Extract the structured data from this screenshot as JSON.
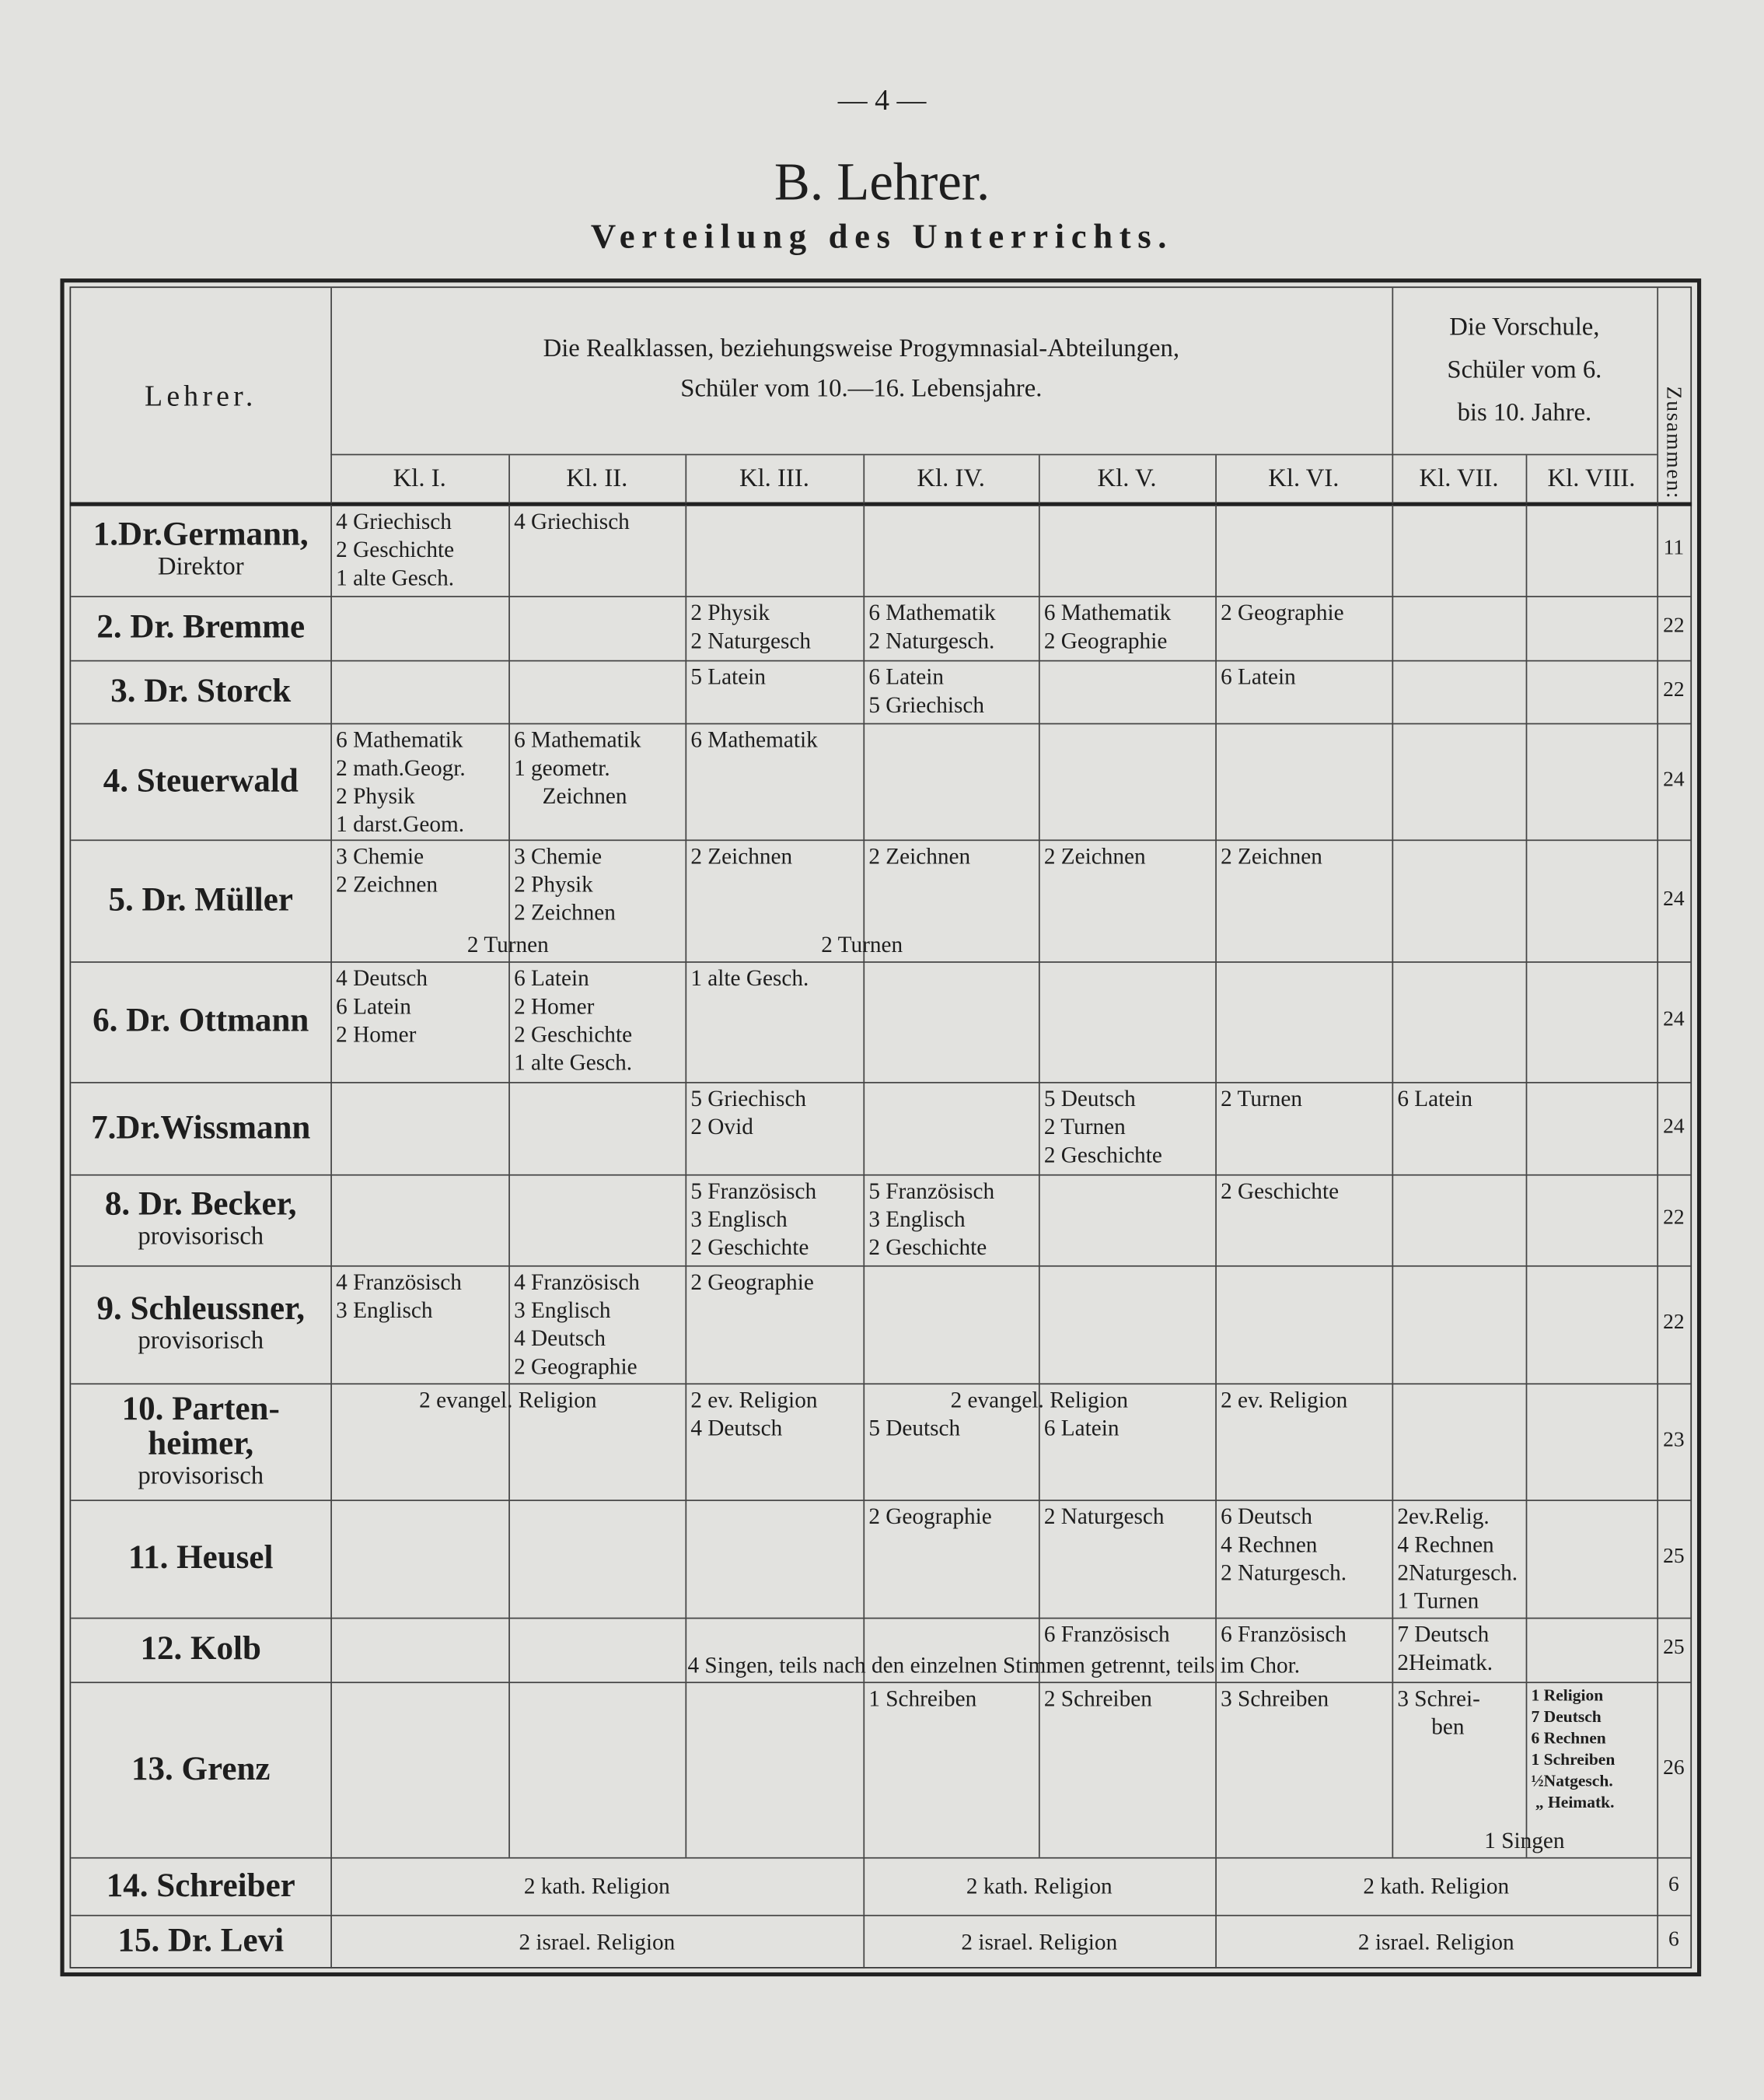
{
  "page_number": "— 4 —",
  "title": "B. Lehrer.",
  "subtitle": "Verteilung des Unterrichts.",
  "header": {
    "teacher_col": "Lehrer.",
    "realklassen": [
      "Die Realklassen, beziehungsweise Progymnasial-Abteilungen,",
      "Schüler vom 10.—16. Lebensjahre."
    ],
    "vorschule": [
      "Die Vorschule,",
      "Schüler vom 6.",
      "bis 10. Jahre."
    ],
    "total_col": "Zusammen:",
    "classes": [
      "Kl. I.",
      "Kl. II.",
      "Kl. III.",
      "Kl. IV.",
      "Kl. V.",
      "Kl. VI.",
      "Kl. VII.",
      "Kl. VIII."
    ]
  },
  "rows": [
    {
      "name": [
        "1.Dr.Germann,"
      ],
      "sub": [
        "Direktor"
      ],
      "total": "11",
      "cells": [
        {
          "col": 0,
          "lines": [
            "4 Griechisch",
            "2 Geschichte",
            "1 alte Gesch."
          ]
        },
        {
          "col": 1,
          "lines": [
            "4 Griechisch"
          ]
        }
      ],
      "spans": []
    },
    {
      "name": [
        "2. Dr. Bremme"
      ],
      "sub": [],
      "total": "22",
      "cells": [
        {
          "col": 2,
          "lines": [
            "2 Physik",
            "2 Naturgesch"
          ]
        },
        {
          "col": 3,
          "lines": [
            "6 Mathematik",
            "2 Naturgesch."
          ]
        },
        {
          "col": 4,
          "lines": [
            "6 Mathematik",
            "2 Geographie"
          ]
        },
        {
          "col": 5,
          "lines": [
            "2 Geographie"
          ]
        }
      ],
      "spans": []
    },
    {
      "name": [
        "3. Dr. Storck"
      ],
      "sub": [],
      "total": "22",
      "cells": [
        {
          "col": 2,
          "lines": [
            "5 Latein"
          ]
        },
        {
          "col": 3,
          "lines": [
            "6 Latein",
            "5 Griechisch"
          ]
        },
        {
          "col": 5,
          "lines": [
            "6 Latein"
          ]
        }
      ],
      "spans": []
    },
    {
      "name": [
        "4. Steuerwald"
      ],
      "sub": [],
      "total": "24",
      "cells": [
        {
          "col": 0,
          "lines": [
            "6 Mathematik",
            "2 math.Geogr.",
            "2 Physik",
            "1 darst.Geom."
          ]
        },
        {
          "col": 1,
          "lines": [
            "6 Mathematik",
            "1 geometr.",
            "     Zeichnen"
          ]
        },
        {
          "col": 2,
          "lines": [
            "6 Mathematik"
          ]
        }
      ],
      "spans": []
    },
    {
      "name": [
        "5. Dr. Müller"
      ],
      "sub": [],
      "total": "24",
      "cells": [
        {
          "col": 0,
          "lines": [
            "3 Chemie",
            "2 Zeichnen"
          ]
        },
        {
          "col": 1,
          "lines": [
            "3 Chemie",
            "2 Physik",
            "2 Zeichnen"
          ]
        },
        {
          "col": 2,
          "lines": [
            "2 Zeichnen"
          ]
        },
        {
          "col": 3,
          "lines": [
            "2 Zeichnen"
          ]
        },
        {
          "col": 4,
          "lines": [
            "2 Zeichnen"
          ]
        },
        {
          "col": 5,
          "lines": [
            "2 Zeichnen"
          ]
        }
      ],
      "spans": [
        {
          "cols": [
            0,
            1
          ],
          "text": "2 Turnen",
          "valign": "bottom"
        },
        {
          "cols": [
            2,
            3
          ],
          "text": "2 Turnen",
          "valign": "bottom"
        }
      ]
    },
    {
      "name": [
        "6. Dr. Ottmann"
      ],
      "sub": [],
      "total": "24",
      "cells": [
        {
          "col": 0,
          "lines": [
            "4 Deutsch",
            "6 Latein",
            "2 Homer"
          ]
        },
        {
          "col": 1,
          "lines": [
            "6 Latein",
            "2 Homer",
            "2 Geschichte",
            "1 alte Gesch."
          ]
        },
        {
          "col": 2,
          "lines": [
            "1 alte Gesch."
          ]
        }
      ],
      "spans": []
    },
    {
      "name": [
        "7.Dr.Wissmann"
      ],
      "sub": [],
      "total": "24",
      "cells": [
        {
          "col": 2,
          "lines": [
            "5 Griechisch",
            "2 Ovid"
          ]
        },
        {
          "col": 4,
          "lines": [
            "5 Deutsch",
            "2 Turnen",
            "2 Geschichte"
          ]
        },
        {
          "col": 5,
          "lines": [
            "2 Turnen"
          ]
        },
        {
          "col": 6,
          "lines": [
            "6 Latein"
          ]
        }
      ],
      "spans": []
    },
    {
      "name": [
        "8. Dr. Becker,"
      ],
      "sub": [
        "provisorisch"
      ],
      "total": "22",
      "cells": [
        {
          "col": 2,
          "lines": [
            "5 Französisch",
            "3 Englisch",
            "2 Geschichte"
          ]
        },
        {
          "col": 3,
          "lines": [
            "5 Französisch",
            "3 Englisch",
            "2 Geschichte"
          ]
        },
        {
          "col": 5,
          "lines": [
            "2 Geschichte"
          ]
        }
      ],
      "spans": []
    },
    {
      "name": [
        "9. Schleussner,"
      ],
      "sub": [
        "provisorisch"
      ],
      "total": "22",
      "cells": [
        {
          "col": 0,
          "lines": [
            "4 Französisch",
            "3 Englisch"
          ]
        },
        {
          "col": 1,
          "lines": [
            "4 Französisch",
            "3 Englisch",
            "4 Deutsch",
            "2 Geographie"
          ]
        },
        {
          "col": 2,
          "lines": [
            "2 Geographie"
          ]
        }
      ],
      "spans": []
    },
    {
      "name": [
        "10. Parten-",
        "heimer,"
      ],
      "sub": [
        "provisorisch"
      ],
      "total": "23",
      "cells": [
        {
          "col": 2,
          "lines": [
            "2 ev. Religion",
            "4 Deutsch"
          ]
        },
        {
          "col": 3,
          "lines": [
            "",
            "5 Deutsch"
          ]
        },
        {
          "col": 4,
          "lines": [
            "",
            "6 Latein"
          ]
        },
        {
          "col": 5,
          "lines": [
            "2 ev. Religion"
          ]
        }
      ],
      "spans": [
        {
          "cols": [
            0,
            1
          ],
          "text": "2 evangel. Religion",
          "valign": "top"
        },
        {
          "cols": [
            3,
            4
          ],
          "text": "2 evangel. Religion",
          "valign": "top"
        }
      ]
    },
    {
      "name": [
        "11. Heusel"
      ],
      "sub": [],
      "total": "25",
      "cells": [
        {
          "col": 3,
          "lines": [
            "2 Geographie"
          ]
        },
        {
          "col": 4,
          "lines": [
            "2 Naturgesch"
          ]
        },
        {
          "col": 5,
          "lines": [
            "6 Deutsch",
            "4 Rechnen",
            "2 Naturgesch."
          ]
        },
        {
          "col": 6,
          "lines": [
            "2ev.Relig.",
            "4 Rechnen",
            "2Naturgesch.",
            "1 Turnen"
          ]
        }
      ],
      "spans": []
    },
    {
      "name": [
        "12. Kolb"
      ],
      "sub": [],
      "total": "25",
      "cells": [
        {
          "col": 4,
          "lines": [
            "6 Französisch"
          ]
        },
        {
          "col": 5,
          "lines": [
            "6 Französisch"
          ]
        },
        {
          "col": 6,
          "lines": [
            "7 Deutsch",
            "2Heimatk."
          ]
        }
      ],
      "spans": [
        {
          "cols": [
            0,
            7
          ],
          "text": "4 Singen, teils nach den einzelnen Stimmen getrennt, teils im Chor.",
          "valign": "bottom"
        }
      ]
    },
    {
      "name": [
        "13. Grenz"
      ],
      "sub": [],
      "total": "26",
      "cells": [
        {
          "col": 3,
          "lines": [
            "1 Schreiben"
          ]
        },
        {
          "col": 4,
          "lines": [
            "2 Schreiben"
          ]
        },
        {
          "col": 5,
          "lines": [
            "3 Schreiben"
          ]
        },
        {
          "col": 6,
          "lines": [
            "3 Schrei-",
            "      ben"
          ]
        },
        {
          "col": 7,
          "lines": [
            "1 Religion",
            "7 Deutsch",
            "6 Rechnen",
            "1 Schreiben",
            "½Natgesch.",
            " „ Heimatk."
          ],
          "small": true
        }
      ],
      "spans": [
        {
          "cols": [
            6,
            7
          ],
          "text": "1 Singen",
          "valign": "bottom"
        }
      ]
    },
    {
      "name": [
        "14. Schreiber"
      ],
      "sub": [],
      "total": "6",
      "cells": [],
      "spans": [
        {
          "cols": [
            0,
            2
          ],
          "text": "2 kath. Religion",
          "valign": "middle"
        },
        {
          "cols": [
            3,
            4
          ],
          "text": "2 kath. Religion",
          "valign": "middle"
        },
        {
          "cols": [
            5,
            7
          ],
          "text": "2 kath. Religion",
          "valign": "middle"
        }
      ]
    },
    {
      "name": [
        "15. Dr. Levi"
      ],
      "sub": [],
      "total": "6",
      "cells": [],
      "spans": [
        {
          "cols": [
            0,
            2
          ],
          "text": "2 israel. Religion",
          "valign": "middle"
        },
        {
          "cols": [
            3,
            4
          ],
          "text": "2 israel. Religion",
          "valign": "middle"
        },
        {
          "cols": [
            5,
            7
          ],
          "text": "2 israel. Religion",
          "valign": "middle"
        }
      ]
    }
  ]
}
